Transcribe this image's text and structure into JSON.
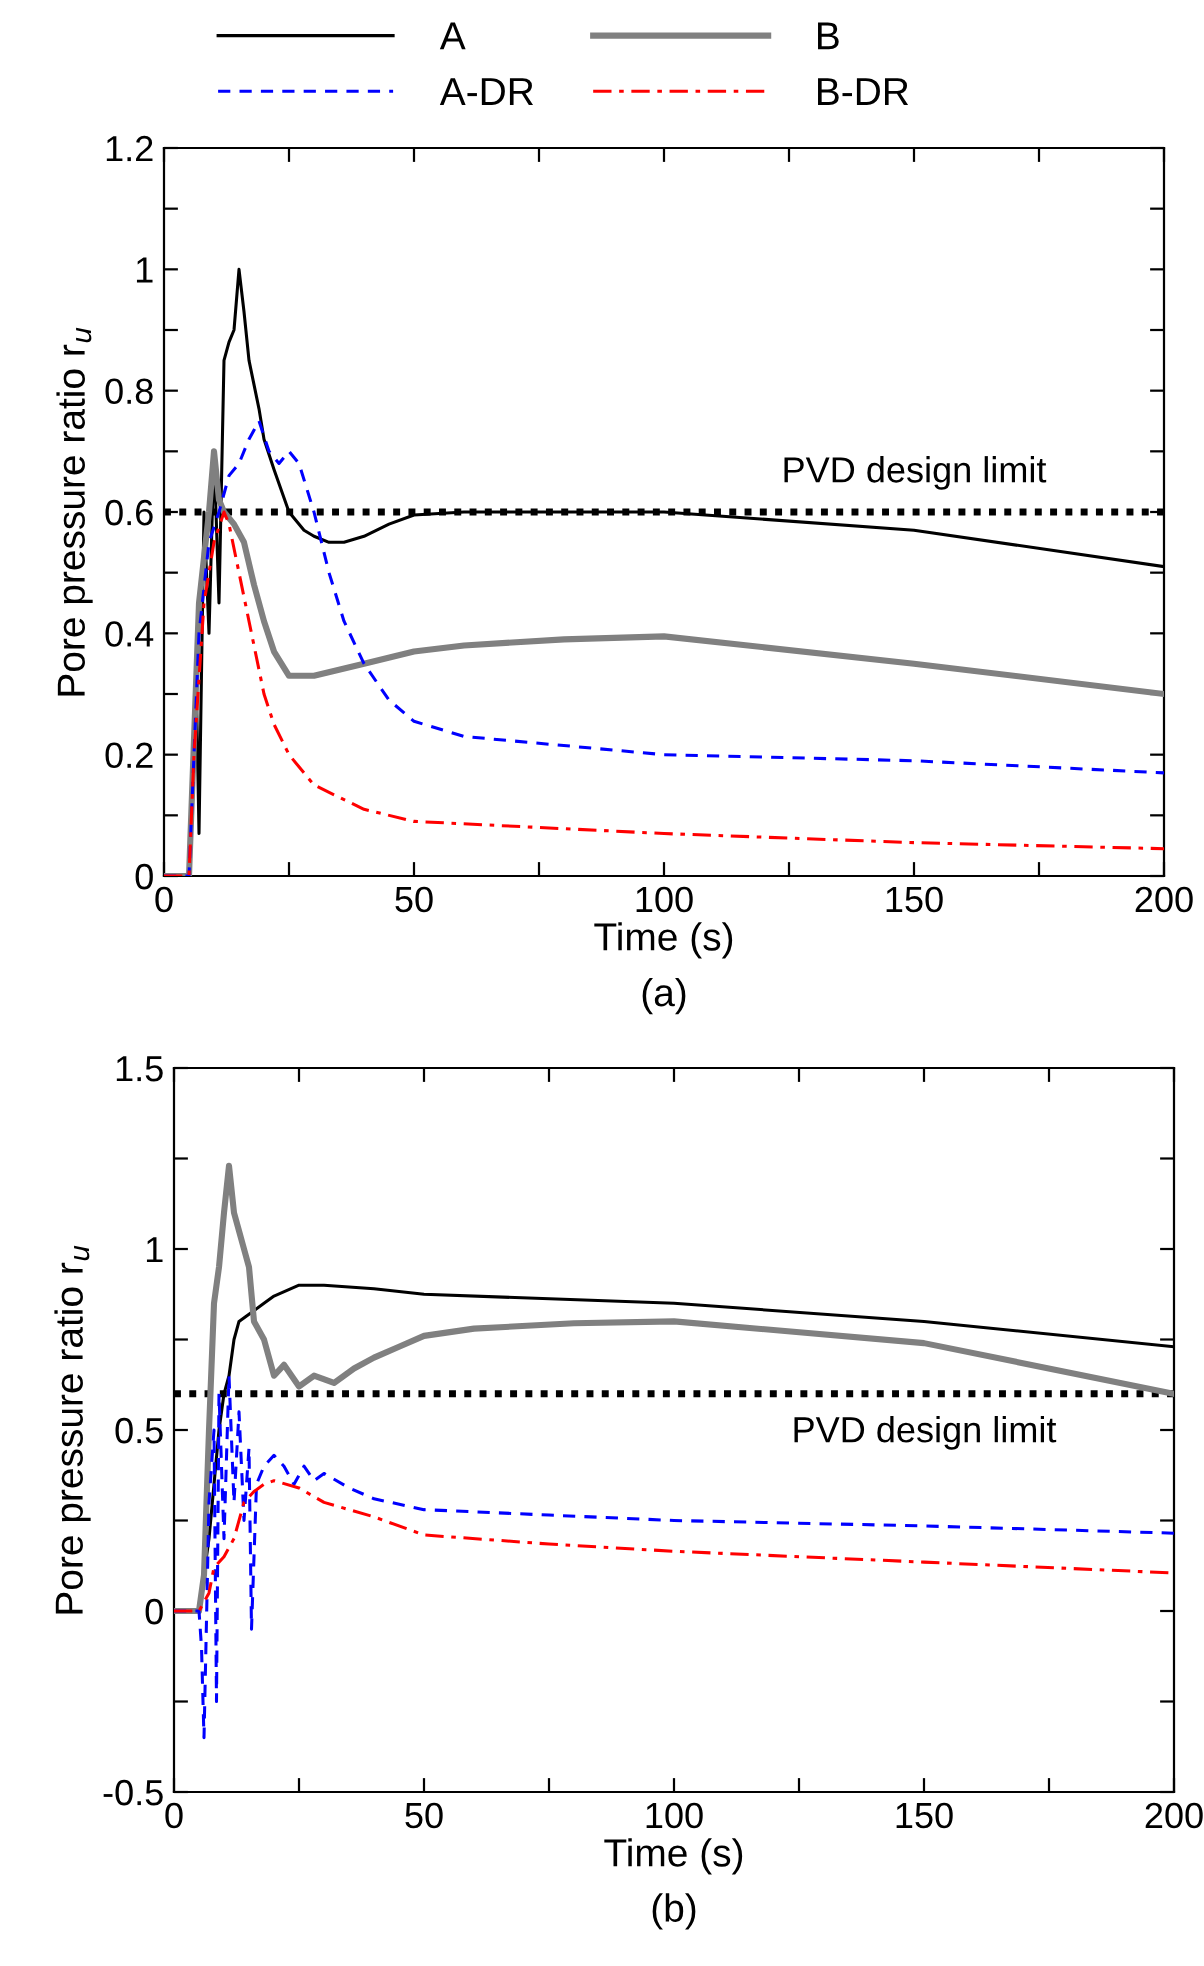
{
  "chart_data": [
    {
      "type": "line",
      "xlabel": "Time (s)",
      "ylabel": "Pore pressure ratio r$_{u}$",
      "annotations": [
        "(a)"
      ],
      "legend": "top",
      "grid": false,
      "xlim": [
        0,
        200
      ],
      "xticks": [
        0,
        {
          "value": 25,
          "label": null
        },
        50,
        {
          "value": 75,
          "label": null
        },
        100,
        {
          "value": 125,
          "label": null
        },
        150,
        {
          "value": 175,
          "label": null
        },
        200
      ],
      "ylim": [
        0,
        1.2
      ],
      "yticks": [
        0,
        {
          "value": 0.1,
          "label": null
        },
        0.2,
        {
          "value": 0.3,
          "label": null
        },
        0.4,
        {
          "value": 0.5,
          "label": null
        },
        0.6,
        {
          "value": 0.7,
          "label": null
        },
        0.8,
        {
          "value": 0.9,
          "label": null
        },
        1,
        {
          "value": 1.1,
          "label": null
        },
        1.2
      ],
      "ref_lines": [
        {
          "axis": "y",
          "value": 0.6,
          "label": "PVD design limit",
          "color": "#000000",
          "line_style": "dotted"
        }
      ],
      "series": [
        {
          "name": "A",
          "color": "#000000",
          "line_style": "solid",
          "x": [
            0,
            5,
            6.5,
            7,
            8,
            9,
            10,
            11,
            12,
            13,
            14,
            15,
            16,
            17,
            19,
            20,
            22,
            25,
            28,
            30,
            33,
            36,
            40,
            45,
            50,
            60,
            100,
            150,
            200
          ],
          "values": [
            0,
            0,
            0.3,
            0.07,
            0.6,
            0.4,
            0.7,
            0.45,
            0.85,
            0.88,
            0.9,
            1.0,
            0.93,
            0.85,
            0.77,
            0.72,
            0.67,
            0.6,
            0.57,
            0.56,
            0.55,
            0.55,
            0.56,
            0.58,
            0.595,
            0.6,
            0.6,
            0.57,
            0.51
          ]
        },
        {
          "name": "B",
          "color": "#808080",
          "line_style": "solid",
          "x": [
            0,
            5,
            7,
            9,
            10,
            11,
            12,
            14,
            16,
            18,
            20,
            22,
            25,
            30,
            35,
            40,
            50,
            60,
            80,
            100,
            150,
            200
          ],
          "values": [
            0,
            0,
            0.45,
            0.6,
            0.7,
            0.62,
            0.6,
            0.58,
            0.55,
            0.48,
            0.42,
            0.37,
            0.33,
            0.33,
            0.34,
            0.35,
            0.37,
            0.38,
            0.39,
            0.395,
            0.35,
            0.3
          ]
        },
        {
          "name": "A-DR",
          "color": "#0000ff",
          "line_style": "dashed",
          "x": [
            0,
            5,
            7,
            9,
            11,
            13,
            15,
            17,
            19,
            21,
            23,
            25,
            27,
            30,
            33,
            36,
            40,
            45,
            50,
            60,
            100,
            150,
            200
          ],
          "values": [
            0,
            0,
            0.4,
            0.55,
            0.6,
            0.66,
            0.68,
            0.72,
            0.75,
            0.7,
            0.68,
            0.7,
            0.68,
            0.6,
            0.5,
            0.42,
            0.35,
            0.29,
            0.255,
            0.23,
            0.2,
            0.19,
            0.17
          ]
        },
        {
          "name": "B-DR",
          "color": "#ff0000",
          "line_style": "dashdot",
          "x": [
            0,
            5,
            6,
            8,
            10,
            12,
            13,
            15,
            17,
            20,
            22,
            25,
            30,
            40,
            50,
            100,
            150,
            200
          ],
          "values": [
            0,
            0,
            0.2,
            0.45,
            0.55,
            0.6,
            0.58,
            0.5,
            0.42,
            0.3,
            0.25,
            0.2,
            0.15,
            0.11,
            0.09,
            0.07,
            0.055,
            0.045
          ]
        }
      ]
    },
    {
      "type": "line",
      "xlabel": "Time (s)",
      "ylabel": "Pore pressure ratio r$_{u}$",
      "annotations": [
        "(b)"
      ],
      "legend": false,
      "grid": false,
      "xlim": [
        0,
        200
      ],
      "xticks": [
        0,
        {
          "value": 25,
          "label": null
        },
        50,
        {
          "value": 75,
          "label": null
        },
        100,
        {
          "value": 125,
          "label": null
        },
        150,
        {
          "value": 175,
          "label": null
        },
        200
      ],
      "ylim": [
        -0.5,
        1.5
      ],
      "yticks": [
        -0.5,
        {
          "value": -0.25,
          "label": null
        },
        0,
        {
          "value": 0.25,
          "label": null
        },
        0.5,
        {
          "value": 0.75,
          "label": null
        },
        1,
        {
          "value": 1.25,
          "label": null
        },
        1.5
      ],
      "ref_lines": [
        {
          "axis": "y",
          "value": 0.6,
          "label": "PVD design limit",
          "color": "#000000",
          "line_style": "dotted"
        }
      ],
      "series": [
        {
          "color": "#000000",
          "line_style": "solid",
          "x": [
            0,
            5,
            7,
            9,
            10,
            11,
            12,
            13,
            15,
            18,
            20,
            25,
            30,
            40,
            50,
            100,
            150,
            200
          ],
          "values": [
            0,
            0,
            0.2,
            0.5,
            0.6,
            0.65,
            0.75,
            0.8,
            0.82,
            0.85,
            0.87,
            0.9,
            0.9,
            0.89,
            0.875,
            0.85,
            0.8,
            0.73
          ]
        },
        {
          "color": "#808080",
          "line_style": "solid",
          "x": [
            0,
            5,
            6,
            7,
            8,
            9,
            10,
            11,
            12,
            13,
            14,
            15,
            16,
            18,
            20,
            22,
            25,
            28,
            32,
            36,
            40,
            45,
            50,
            60,
            80,
            100,
            150,
            200
          ],
          "values": [
            0,
            0,
            0.1,
            0.5,
            0.85,
            0.95,
            1.1,
            1.23,
            1.1,
            1.05,
            1.0,
            0.95,
            0.8,
            0.75,
            0.65,
            0.68,
            0.62,
            0.65,
            0.63,
            0.67,
            0.7,
            0.73,
            0.76,
            0.78,
            0.795,
            0.8,
            0.74,
            0.6
          ]
        },
        {
          "color": "#0000ff",
          "line_style": "dashed",
          "x": [
            0,
            5,
            5.5,
            6,
            7,
            8,
            8.5,
            9,
            10,
            11,
            12,
            13,
            14,
            15,
            15.5,
            16.5,
            18,
            20,
            22,
            24,
            26,
            28,
            30,
            35,
            40,
            50,
            75,
            100,
            150,
            200
          ],
          "values": [
            0,
            0,
            -0.1,
            -0.35,
            0.3,
            0.5,
            -0.25,
            0.6,
            0.2,
            0.65,
            0.3,
            0.55,
            0.25,
            0.45,
            -0.05,
            0.35,
            0.4,
            0.43,
            0.4,
            0.35,
            0.4,
            0.36,
            0.38,
            0.34,
            0.31,
            0.28,
            0.265,
            0.25,
            0.235,
            0.215
          ]
        },
        {
          "color": "#ff0000",
          "line_style": "dashdot",
          "x": [
            0,
            5,
            7,
            8,
            10,
            12,
            14,
            16,
            18,
            20,
            25,
            30,
            40,
            50,
            75,
            100,
            150,
            200
          ],
          "values": [
            0,
            0,
            0.05,
            0.12,
            0.15,
            0.2,
            0.3,
            0.33,
            0.35,
            0.36,
            0.34,
            0.3,
            0.26,
            0.21,
            0.185,
            0.165,
            0.135,
            0.105
          ]
        }
      ]
    }
  ]
}
